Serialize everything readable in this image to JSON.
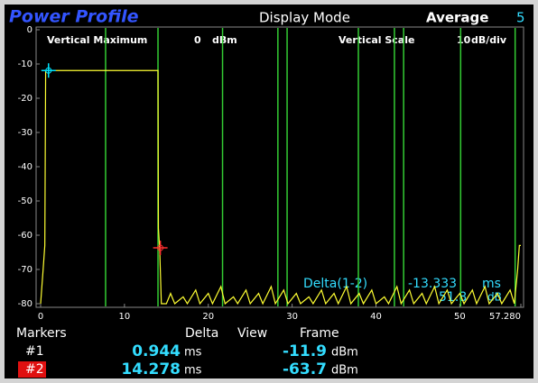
{
  "header": {
    "title": "Power Profile",
    "display_mode": "Display Mode",
    "average_label": "Average",
    "average": 5
  },
  "chart_data": {
    "type": "line",
    "vertical_maximum_label": "Vertical Maximum",
    "vertical_maximum": 0,
    "vertical_maximum_unit": "dBm",
    "vertical_scale_label": "Vertical Scale",
    "vertical_scale": 10,
    "vertical_scale_unit": "dB/div",
    "x": [
      0,
      0.3,
      0.5,
      0.6,
      14.0,
      14.05,
      14.2,
      14.4,
      15,
      15.5,
      16,
      17,
      17.5,
      18.5,
      19,
      20,
      20.5,
      21.5,
      22,
      23,
      23.5,
      24.5,
      25,
      26,
      26.5,
      27.5,
      28,
      29,
      29.5,
      30.5,
      31,
      32,
      32.5,
      33.5,
      34,
      35,
      35.5,
      36.5,
      37,
      38,
      38.5,
      39.5,
      40,
      41,
      41.5,
      42.5,
      43,
      44,
      44.5,
      45.5,
      46,
      47,
      47.5,
      48.5,
      49,
      50,
      50.5,
      51.5,
      52,
      53,
      53.5,
      54.5,
      55,
      56,
      56.5,
      56.9,
      57.1,
      57.28
    ],
    "series": [
      {
        "color": "#ffff33",
        "values": [
          -80,
          -70,
          -63,
          -11.9,
          -11.9,
          -58,
          -64,
          -80,
          -80,
          -77,
          -80,
          -78,
          -80,
          -76,
          -80,
          -77,
          -80,
          -75,
          -80,
          -78,
          -80,
          -76,
          -80,
          -77,
          -80,
          -75,
          -80,
          -76,
          -80,
          -77,
          -80,
          -78,
          -80,
          -76,
          -80,
          -77,
          -80,
          -75,
          -80,
          -77,
          -80,
          -76,
          -80,
          -78,
          -80,
          -75,
          -80,
          -76,
          -80,
          -77,
          -80,
          -75,
          -80,
          -76,
          -80,
          -77,
          -80,
          -76,
          -80,
          -75,
          -80,
          -77,
          -80,
          -76,
          -80,
          -70,
          -63,
          -63
        ]
      }
    ],
    "xlim": [
      0,
      57.28
    ],
    "ylim": [
      -80,
      0
    ],
    "xticks": [
      0,
      10,
      20,
      30,
      40,
      50,
      {
        "value": 57.28,
        "label": "57.280"
      }
    ],
    "yticks": [
      0,
      -10,
      -20,
      -30,
      -40,
      -50,
      -60,
      -70,
      -80
    ],
    "gate_lines": [
      7.75,
      14.0,
      21.7,
      28.3,
      29.4,
      37.9,
      42.2,
      43.3,
      50.1,
      56.6
    ],
    "gate_color": "#33cc33",
    "markers": [
      {
        "label": "#1",
        "x": 0.944,
        "y": -11.9,
        "color": "#00e5ff"
      },
      {
        "label": "#2",
        "x": 14.278,
        "y": -63.7,
        "color": "#ff3030"
      }
    ],
    "delta": {
      "label": "Delta(1-2)",
      "time": -13.333,
      "time_unit": "ms",
      "level": 51.8,
      "level_unit": "dB"
    }
  },
  "marker_panel": {
    "headers": [
      "Markers",
      "Delta",
      "View",
      "Frame"
    ],
    "time_unit": "ms",
    "level_unit": "dBm"
  }
}
